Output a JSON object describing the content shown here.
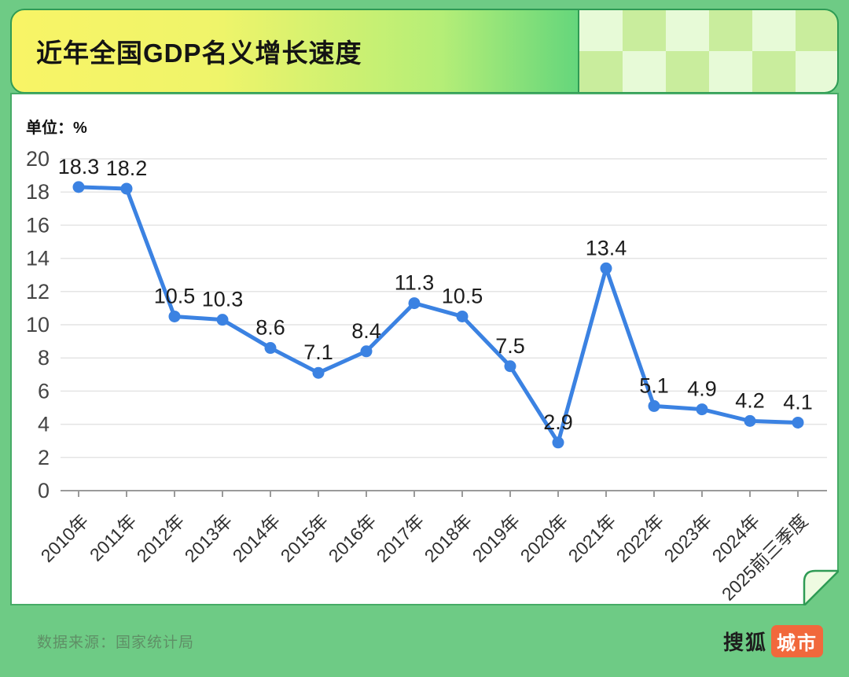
{
  "header": {
    "title": "近年全国GDP名义增长速度"
  },
  "chart_panel": {
    "unit_label": "单位：%"
  },
  "footer": {
    "source_label": "数据来源：国家统计局",
    "brand": {
      "name": "搜狐",
      "badge": "城市"
    }
  },
  "colors": {
    "line": "#3b82e2",
    "frame_green": "#6ecb85",
    "border_green": "#2f9b55",
    "header_yellow": "#f8f466",
    "header_green": "#5ed47c",
    "checker_light": "#e7fad7",
    "checker_dark": "#c9ed9d",
    "badge_orange": "#f1683c",
    "grid": "#e4e4e4",
    "axis": "#9a9a9a"
  },
  "chart_data": {
    "type": "line",
    "title": "近年全国GDP名义增长速度",
    "ylabel": "单位：%",
    "categories": [
      "2010年",
      "2011年",
      "2012年",
      "2013年",
      "2014年",
      "2015年",
      "2016年",
      "2017年",
      "2018年",
      "2019年",
      "2020年",
      "2021年",
      "2022年",
      "2023年",
      "2024年",
      "2025前三季度"
    ],
    "values": [
      18.3,
      18.2,
      10.5,
      10.3,
      8.6,
      7.1,
      8.4,
      11.3,
      10.5,
      7.5,
      2.9,
      13.4,
      5.1,
      4.9,
      4.2,
      4.1
    ],
    "ylim": [
      0,
      20
    ],
    "ytick_step": 2,
    "grid": true,
    "legend": "none",
    "marker": "circle",
    "data_labels": true,
    "x_label_rotation": -45
  }
}
